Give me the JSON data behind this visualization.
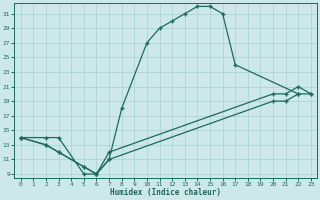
{
  "xlabel": "Humidex (Indice chaleur)",
  "bg_color": "#cce8e8",
  "line_color": "#1a6b5a",
  "grid_color": "#b0d8d8",
  "xlim": [
    -0.5,
    23.5
  ],
  "ylim": [
    8.5,
    32.5
  ],
  "xticks": [
    0,
    1,
    2,
    3,
    4,
    5,
    6,
    7,
    8,
    9,
    10,
    11,
    12,
    13,
    14,
    15,
    16,
    17,
    18,
    19,
    20,
    21,
    22,
    23
  ],
  "yticks": [
    9,
    11,
    13,
    15,
    17,
    19,
    21,
    23,
    25,
    27,
    29,
    31
  ],
  "curve1_x": [
    0,
    2,
    3,
    5,
    6,
    7,
    8,
    10,
    11,
    12,
    13,
    14,
    15,
    16,
    17,
    22
  ],
  "curve1_y": [
    14,
    14,
    14,
    9,
    9,
    11,
    18,
    27,
    29,
    30,
    31,
    32,
    32,
    31,
    24,
    20
  ],
  "curve2_x": [
    0,
    2,
    3,
    5,
    6,
    7,
    20,
    21,
    22,
    23
  ],
  "curve2_y": [
    14,
    13,
    12,
    10,
    9,
    12,
    20,
    20,
    21,
    20
  ],
  "curve3_x": [
    0,
    2,
    3,
    5,
    6,
    7,
    20,
    21,
    22,
    23
  ],
  "curve3_y": [
    14,
    13,
    12,
    10,
    9,
    11,
    19,
    19,
    20,
    20
  ],
  "marker_style": "D",
  "lw": 0.9,
  "ms": 2.5
}
